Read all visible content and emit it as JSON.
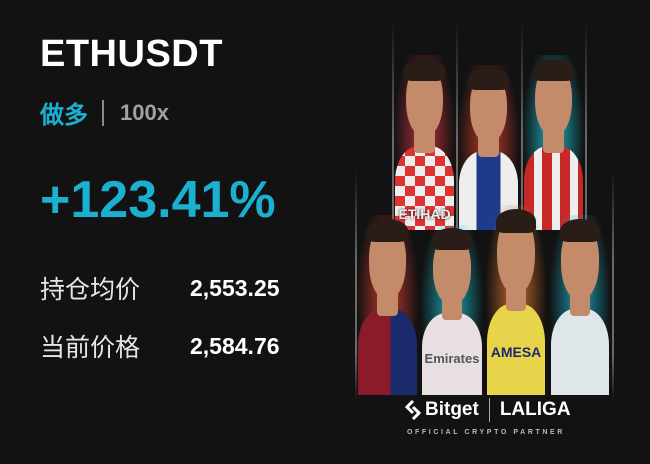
{
  "position": {
    "symbol": "ETHUSDT",
    "side": "做多",
    "leverage": "100x",
    "pnl_percent": "+123.41%",
    "entry_price_label": "持仓均价",
    "entry_price": "2,553.25",
    "current_price_label": "当前价格",
    "current_price": "2,584.76"
  },
  "colors": {
    "accent": "#1cb0d0",
    "background": "#121212"
  },
  "poster": {
    "brand": "Bitget",
    "partner_brand": "LALIGA",
    "tagline": "OFFICIAL CRYPTO PARTNER",
    "brand_icon": "bitget-logo-icon",
    "jersey_text": [
      "ETIHAD",
      "Emirates",
      "AMESA"
    ]
  }
}
